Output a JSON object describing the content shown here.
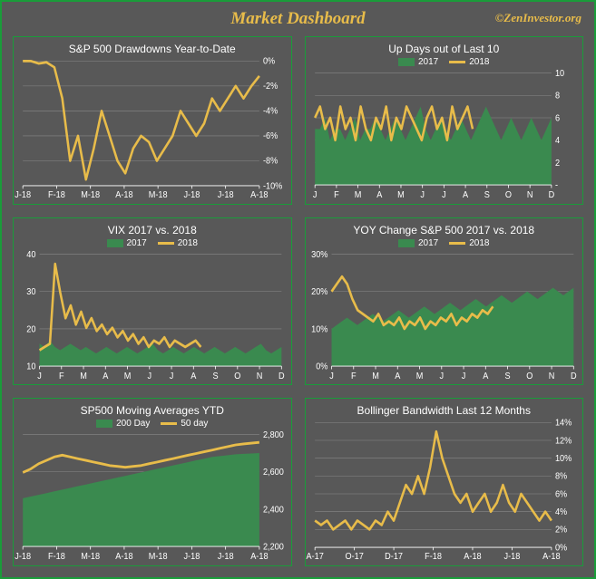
{
  "title": "Market Dashboard",
  "attribution": "©ZenInvestor.org",
  "colors": {
    "frame_border": "#1a9c3a",
    "panel_border": "#1a9c3a",
    "background": "#585858",
    "accent_gold": "#e8bc4a",
    "line_gold": "#e8bc4a",
    "area_green": "#3a8a4f",
    "axis_text": "#ffffff",
    "grid_line": "#888888"
  },
  "panels": [
    {
      "id": "drawdowns",
      "title": "S&P 500 Drawdowns Year-to-Date",
      "type": "line",
      "legend": null,
      "x_labels": [
        "J-18",
        "F-18",
        "M-18",
        "A-18",
        "M-18",
        "J-18",
        "J-18",
        "A-18"
      ],
      "y_labels": [
        "0%",
        "-2%",
        "-4%",
        "-6%",
        "-8%",
        "-10%"
      ],
      "ylim": [
        -10,
        0
      ],
      "series": {
        "2018": [
          0,
          0,
          -0.2,
          -0.1,
          -0.5,
          -3,
          -8,
          -6,
          -9.5,
          -7,
          -4,
          -6,
          -8,
          -9,
          -7,
          -6,
          -6.5,
          -8,
          -7,
          -6,
          -4,
          -5,
          -6,
          -5,
          -3,
          -4,
          -3,
          -2,
          -3,
          -2,
          -1.2
        ]
      }
    },
    {
      "id": "updays",
      "title": "Up Days out of Last  10",
      "type": "area-line",
      "legend": {
        "area": "2017",
        "line": "2018"
      },
      "x_labels": [
        "J",
        "F",
        "M",
        "A",
        "M",
        "J",
        "J",
        "A",
        "S",
        "O",
        "N",
        "D"
      ],
      "y_labels": [
        "10",
        "8",
        "6",
        "4",
        "2",
        "-"
      ],
      "ylim": [
        0,
        10
      ],
      "series": {
        "2017": [
          5,
          5,
          6,
          4,
          5,
          5,
          4,
          5,
          6,
          4,
          5,
          5,
          6,
          5,
          4,
          5,
          6,
          5,
          4,
          5,
          6,
          7,
          5,
          4,
          5,
          6,
          5,
          4,
          5,
          6,
          5,
          4,
          5,
          6,
          7,
          6,
          5,
          4,
          5,
          6,
          5,
          4,
          5,
          6,
          5,
          4,
          5,
          6
        ],
        "2018": [
          6,
          7,
          5,
          6,
          4,
          7,
          5,
          6,
          4,
          7,
          5,
          4,
          6,
          5,
          7,
          4,
          6,
          5,
          7,
          6,
          5,
          4,
          6,
          7,
          5,
          6,
          4,
          7,
          5,
          6,
          7,
          5
        ]
      }
    },
    {
      "id": "vix",
      "title": "VIX 2017 vs. 2018",
      "type": "area-line",
      "legend": {
        "area": "2017",
        "line": "2018"
      },
      "x_labels": [
        "J",
        "F",
        "M",
        "A",
        "M",
        "J",
        "J",
        "A",
        "S",
        "O",
        "N",
        "D"
      ],
      "y_labels": [
        "40",
        "30",
        "20",
        "10"
      ],
      "ylim": [
        5,
        40
      ],
      "series": {
        "2017": [
          12,
          11,
          13,
          11,
          10,
          11,
          12,
          11,
          10,
          11,
          10,
          9,
          10,
          11,
          10,
          9,
          10,
          11,
          10,
          9,
          10,
          11,
          12,
          10,
          9,
          10,
          11,
          10,
          9,
          10,
          11,
          10,
          9,
          10,
          11,
          10,
          9,
          10,
          11,
          10,
          9,
          10,
          11,
          12,
          10,
          9,
          10,
          11
        ],
        "2018": [
          10,
          11,
          12,
          37,
          28,
          20,
          24,
          18,
          22,
          17,
          20,
          16,
          18,
          15,
          17,
          14,
          16,
          13,
          15,
          12,
          14,
          11,
          13,
          12,
          14,
          11,
          13,
          12,
          11,
          12,
          13,
          11
        ]
      }
    },
    {
      "id": "yoy",
      "title": "YOY Change S&P 500 2017 vs. 2018",
      "type": "area-line",
      "legend": {
        "area": "2017",
        "line": "2018"
      },
      "x_labels": [
        "J",
        "F",
        "M",
        "A",
        "M",
        "J",
        "J",
        "A",
        "S",
        "O",
        "N",
        "D"
      ],
      "y_labels": [
        "30%",
        "20%",
        "10%",
        "0%"
      ],
      "ylim": [
        0,
        30
      ],
      "series": {
        "2017": [
          10,
          11,
          12,
          13,
          12,
          11,
          12,
          13,
          14,
          13,
          12,
          13,
          14,
          15,
          14,
          13,
          14,
          15,
          16,
          15,
          14,
          15,
          16,
          17,
          16,
          15,
          16,
          17,
          18,
          17,
          16,
          17,
          18,
          19,
          18,
          17,
          18,
          19,
          20,
          19,
          18,
          19,
          20,
          21,
          20,
          19,
          20,
          21
        ],
        "2018": [
          20,
          22,
          24,
          22,
          18,
          15,
          14,
          13,
          12,
          14,
          11,
          12,
          11,
          13,
          10,
          12,
          11,
          13,
          10,
          12,
          11,
          13,
          12,
          14,
          11,
          13,
          12,
          14,
          13,
          15,
          14,
          16
        ]
      }
    },
    {
      "id": "ma",
      "title": "SP500 Moving Averages YTD",
      "type": "area-line",
      "legend": {
        "area": "200 Day",
        "line": "50 day"
      },
      "x_labels": [
        "J-18",
        "F-18",
        "M-18",
        "A-18",
        "M-18",
        "J-18",
        "J-18",
        "A-18"
      ],
      "y_labels": [
        "2,800",
        "2,600",
        "2,400",
        "2,200"
      ],
      "ylim": [
        2200,
        2850
      ],
      "series": {
        "200d": [
          2480,
          2490,
          2500,
          2510,
          2520,
          2530,
          2540,
          2550,
          2560,
          2570,
          2580,
          2590,
          2600,
          2610,
          2620,
          2630,
          2640,
          2650,
          2660,
          2670,
          2680,
          2690,
          2700,
          2710,
          2720,
          2725,
          2730,
          2735,
          2738,
          2740,
          2742
        ],
        "50d": [
          2630,
          2650,
          2680,
          2700,
          2720,
          2730,
          2720,
          2710,
          2700,
          2690,
          2680,
          2670,
          2665,
          2660,
          2665,
          2670,
          2680,
          2690,
          2700,
          2710,
          2720,
          2730,
          2740,
          2750,
          2760,
          2770,
          2780,
          2790,
          2795,
          2800,
          2805
        ]
      }
    },
    {
      "id": "bb",
      "title": "Bollinger Bandwidth Last 12 Months",
      "type": "line",
      "legend": null,
      "x_labels": [
        "A-17",
        "O-17",
        "D-17",
        "F-18",
        "A-18",
        "J-18",
        "A-18"
      ],
      "y_labels": [
        "14%",
        "12%",
        "10%",
        "8%",
        "6%",
        "4%",
        "2%",
        "0%"
      ],
      "ylim": [
        0,
        14
      ],
      "series": {
        "bb": [
          3,
          2.5,
          3,
          2,
          2.5,
          3,
          2,
          3,
          2.5,
          2,
          3,
          2.5,
          4,
          3,
          5,
          7,
          6,
          8,
          6,
          9,
          13,
          10,
          8,
          6,
          5,
          6,
          4,
          5,
          6,
          4,
          5,
          7,
          5,
          4,
          6,
          5,
          4,
          3,
          4,
          3
        ]
      }
    }
  ]
}
